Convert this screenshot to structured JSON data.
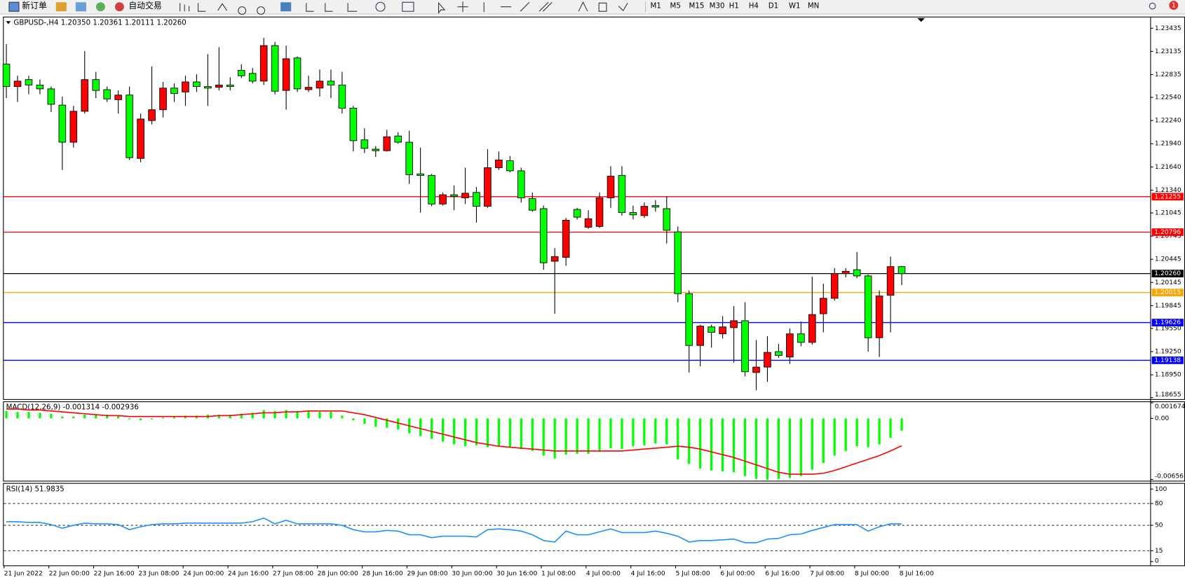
{
  "toolbar": {
    "new_order": "新订单",
    "auto_trading": "自动交易",
    "timeframes": [
      "M1",
      "M5",
      "M15",
      "M30",
      "H1",
      "H4",
      "D1",
      "W1",
      "MN"
    ],
    "notification_count": 1
  },
  "chart_data": [
    {
      "type": "candlestick",
      "title": "GBPUSD-,H4  1.20350 1.20361 1.20111 1.20260",
      "categories": [
        "21 Jun 2022",
        null,
        null,
        null,
        "22 Jun 00:00",
        null,
        null,
        null,
        "22 Jun 16:00",
        null,
        null,
        null,
        "23 Jun 08:00",
        null,
        null,
        null,
        "24 Jun 00:00",
        null,
        null,
        null,
        "24 Jun 16:00",
        null,
        null,
        null,
        "27 Jun 08:00",
        null,
        null,
        null,
        "28 Jun 00:00",
        null,
        null,
        null,
        "28 Jun 16:00",
        null,
        null,
        null,
        "29 Jun 08:00",
        null,
        null,
        null,
        "30 Jun 00:00",
        null,
        null,
        null,
        "30 Jun 16:00",
        null,
        null,
        null,
        "1 Jul 08:00",
        null,
        null,
        null,
        "4 Jul 00:00",
        null,
        null,
        null,
        "4 Jul 16:00",
        null,
        null,
        null,
        "5 Jul 08:00",
        null,
        null,
        null,
        "6 Jul 00:00",
        null,
        null,
        null,
        "6 Jul 16:00",
        null,
        null,
        null,
        "7 Jul 08:00",
        null,
        null,
        null,
        "8 Jul 00:00",
        null,
        null,
        null,
        "8 Jul 16:00"
      ],
      "open": [
        1.2297,
        1.2268,
        1.2277,
        1.227,
        1.2265,
        1.2244,
        1.2196,
        1.2236,
        1.2277,
        1.2264,
        1.2251,
        1.2257,
        1.2175,
        1.2224,
        1.2238,
        1.2266,
        1.2261,
        1.2274,
        1.2268,
        1.2267,
        1.227,
        1.2289,
        1.2285,
        1.2275,
        1.2321,
        1.2263,
        1.2305,
        1.2264,
        1.2266,
        1.2275,
        1.227,
        1.224,
        1.2199,
        1.2187,
        1.2185,
        1.2204,
        1.2196,
        1.2155,
        1.2153,
        1.2116,
        1.2128,
        1.2124,
        1.2131,
        1.2113,
        1.2163,
        1.2172,
        1.2159,
        1.2123,
        1.211,
        1.2042,
        1.2047,
        1.2109,
        1.2086,
        1.2087,
        1.2124,
        1.2153,
        1.2105,
        1.2101,
        1.2114,
        1.211,
        1.208,
        1.2,
        1.1933,
        1.1957,
        1.1948,
        1.1956,
        1.1965,
        1.1898,
        1.1905,
        1.1925,
        1.1918,
        1.1948,
        1.1937,
        1.1974,
        1.1994,
        1.2026,
        1.2031,
        1.2023,
        1.1943,
        1.1998,
        1.2035
      ],
      "high": [
        1.2323,
        1.2282,
        1.2282,
        1.2277,
        1.2268,
        1.2255,
        1.2243,
        1.2314,
        1.2287,
        1.2268,
        1.2263,
        1.2268,
        1.2233,
        1.2294,
        1.2274,
        1.2272,
        1.2282,
        1.2284,
        1.231,
        1.2319,
        1.228,
        1.2297,
        1.2292,
        1.2331,
        1.2326,
        1.2321,
        1.2307,
        1.2282,
        1.229,
        1.229,
        1.2287,
        1.2243,
        1.2214,
        1.2191,
        1.2212,
        1.2209,
        1.2211,
        1.2189,
        1.2155,
        1.2131,
        1.214,
        1.2163,
        1.2138,
        1.2187,
        1.2184,
        1.2178,
        1.2163,
        1.2131,
        1.2114,
        1.2059,
        1.2098,
        1.2111,
        1.2108,
        1.2131,
        1.2165,
        1.2165,
        1.2114,
        1.2118,
        1.2121,
        1.2126,
        1.2087,
        1.2004,
        1.196,
        1.196,
        1.1971,
        1.1984,
        1.1989,
        1.194,
        1.1945,
        1.1935,
        1.1955,
        1.1964,
        1.2022,
        1.2013,
        1.2033,
        1.2033,
        1.2054,
        1.2025,
        1.2004,
        1.2048,
        1.20361
      ],
      "low": [
        1.2253,
        1.2248,
        1.2258,
        1.2258,
        1.2235,
        1.216,
        1.2189,
        1.2233,
        1.2253,
        1.2248,
        1.2233,
        1.2173,
        1.217,
        1.2219,
        1.2228,
        1.2248,
        1.2243,
        1.2261,
        1.2243,
        1.2263,
        1.2263,
        1.2279,
        1.2272,
        1.227,
        1.2258,
        1.2238,
        1.2261,
        1.2261,
        1.2255,
        1.2253,
        1.2233,
        1.2184,
        1.2182,
        1.2177,
        1.2184,
        1.2194,
        1.2142,
        1.2105,
        1.2113,
        1.2114,
        1.2108,
        1.2116,
        1.2092,
        1.2111,
        1.216,
        1.2157,
        1.2118,
        1.2106,
        1.2031,
        1.1974,
        1.2036,
        1.2096,
        1.2084,
        1.2085,
        1.2111,
        1.2101,
        1.2096,
        1.2098,
        1.2106,
        1.2065,
        1.1989,
        1.1898,
        1.1906,
        1.193,
        1.1942,
        1.1911,
        1.1893,
        1.1875,
        1.1886,
        1.1917,
        1.1909,
        1.1932,
        1.1934,
        1.195,
        1.1991,
        1.2021,
        1.202,
        1.1925,
        1.1918,
        1.195,
        1.20111
      ],
      "close": [
        1.2268,
        1.2275,
        1.227,
        1.2265,
        1.2245,
        1.2196,
        1.2236,
        1.2277,
        1.2263,
        1.2252,
        1.2257,
        1.2176,
        1.2226,
        1.2238,
        1.2266,
        1.2259,
        1.2274,
        1.2268,
        1.2266,
        1.227,
        1.2268,
        1.2282,
        1.2275,
        1.2321,
        1.2262,
        1.2304,
        1.2265,
        1.2267,
        1.2275,
        1.227,
        1.224,
        1.2198,
        1.2188,
        1.2185,
        1.2203,
        1.2196,
        1.2154,
        1.2153,
        1.2116,
        1.2128,
        1.2126,
        1.213,
        1.2113,
        1.2163,
        1.2173,
        1.2159,
        1.2124,
        1.2108,
        1.204,
        1.2048,
        1.2095,
        1.2099,
        1.2097,
        1.2124,
        1.2152,
        1.2105,
        1.2102,
        1.2113,
        1.2112,
        1.2082,
        1.2,
        1.1933,
        1.1958,
        1.195,
        1.1957,
        1.1965,
        1.1899,
        1.1905,
        1.1924,
        1.192,
        1.1948,
        1.1937,
        1.1973,
        1.1994,
        1.2026,
        1.2029,
        1.2023,
        1.1943,
        1.1997,
        1.2035,
        1.2026
      ],
      "up_color": "#ff0000",
      "down_color": "#00ff00",
      "ylim": [
        1.18636,
        1.23575
      ],
      "yticks": [
        1.23435,
        1.23135,
        1.22835,
        {
          "value": 1.2254,
          "label": "1.22540"
        },
        {
          "value": 1.2224,
          "label": "1.22240"
        },
        {
          "value": 1.2194,
          "label": "1.21940"
        },
        {
          "value": 1.2164,
          "label": "1.21640"
        },
        {
          "value": 1.2134,
          "label": "1.21340"
        },
        1.21045,
        1.20745,
        1.20445,
        1.20145,
        1.19845,
        {
          "value": 1.1955,
          "label": "1.19550"
        },
        {
          "value": 1.1925,
          "label": "1.19250"
        },
        {
          "value": 1.1895,
          "label": "1.18950"
        },
        1.18655
      ],
      "hlines": [
        {
          "value": 1.21255,
          "label": "1.21255",
          "color": "#ff0000"
        },
        {
          "value": 1.20796,
          "label": "1.20796",
          "color": "#ff0000"
        },
        {
          "value": 1.2026,
          "label": "1.20260",
          "color": "#000000"
        },
        {
          "value": 1.20015,
          "label": "1.20015",
          "color": "#ffa500"
        },
        {
          "value": 1.19626,
          "label": "1.19626",
          "color": "#0000ff"
        },
        {
          "value": 1.19138,
          "label": "1.19138",
          "color": "#0000ff"
        }
      ]
    },
    {
      "type": "macd",
      "title": "MACD(12,26,9) -0.001314 -0.002936",
      "values": [
        0.0008,
        0.0007,
        0.0007,
        0.0006,
        0.0005,
        0.0002,
        0.0002,
        0.0004,
        0.0004,
        0.0004,
        0.0003,
        -0.0001,
        -0.0002,
        -0.0001,
        0.0001,
        0.0002,
        0.0003,
        0.0003,
        0.0004,
        0.0004,
        0.0004,
        0.0005,
        0.0006,
        0.0009,
        0.0008,
        0.0009,
        0.0008,
        0.0008,
        0.0007,
        0.0007,
        0.0003,
        -0.0002,
        -0.0006,
        -0.0009,
        -0.001,
        -0.0012,
        -0.0016,
        -0.0019,
        -0.0022,
        -0.0025,
        -0.0028,
        -0.003,
        -0.0029,
        -0.0031,
        -0.003,
        -0.0031,
        -0.0033,
        -0.0035,
        -0.004,
        -0.0043,
        -0.0039,
        -0.0038,
        -0.0038,
        -0.0036,
        -0.0032,
        -0.0033,
        -0.003,
        -0.0029,
        -0.0027,
        -0.0028,
        -0.0044,
        -0.0049,
        -0.0054,
        -0.0056,
        -0.0057,
        -0.0058,
        -0.0062,
        -0.0065,
        -0.0066,
        -0.0065,
        -0.0064,
        -0.0062,
        -0.0055,
        -0.0048,
        -0.004,
        -0.0035,
        -0.003,
        -0.0031,
        -0.0028,
        -0.0021,
        -0.001314
      ],
      "signal": [
        0.001,
        0.001,
        0.0009,
        0.0009,
        0.0008,
        0.0007,
        0.0006,
        0.0005,
        0.0004,
        0.0003,
        0.0003,
        0.0002,
        0.0002,
        0.0002,
        0.0002,
        0.0002,
        0.0002,
        0.0002,
        0.0002,
        0.0003,
        0.0003,
        0.0004,
        0.0005,
        0.0006,
        0.0006,
        0.0007,
        0.0007,
        0.0008,
        0.0008,
        0.0008,
        0.0008,
        0.0006,
        0.0004,
        0.0001,
        -0.0002,
        -0.0005,
        -0.0008,
        -0.0011,
        -0.0014,
        -0.0017,
        -0.002,
        -0.0023,
        -0.0026,
        -0.0028,
        -0.003,
        -0.0031,
        -0.0032,
        -0.0033,
        -0.0034,
        -0.0035,
        -0.0035,
        -0.0035,
        -0.0035,
        -0.0035,
        -0.0035,
        -0.0035,
        -0.0034,
        -0.0033,
        -0.0032,
        -0.0031,
        -0.003,
        -0.0031,
        -0.0033,
        -0.0036,
        -0.0039,
        -0.0042,
        -0.0046,
        -0.005,
        -0.0054,
        -0.0058,
        -0.006,
        -0.006,
        -0.006,
        -0.0059,
        -0.0056,
        -0.0052,
        -0.0048,
        -0.0044,
        -0.004,
        -0.0035,
        -0.002936
      ],
      "color": "#00ff00",
      "signal_color": "#ff0000",
      "ylim": [
        -0.0067,
        0.00175
      ],
      "yticks": [
        0.001674,
        {
          "value": 0,
          "label": "0.00"
        },
        -0.00656
      ]
    },
    {
      "type": "line",
      "title": "RSI(14) 51.9835",
      "values": [
        55,
        55,
        54,
        54,
        51,
        46,
        50,
        53,
        52,
        52,
        51,
        44,
        48,
        51,
        52,
        52,
        53,
        53,
        53,
        53,
        53,
        53,
        55,
        60,
        52,
        57,
        52,
        52,
        52,
        52,
        50,
        44,
        41,
        41,
        43,
        42,
        37,
        37,
        33,
        35,
        35,
        35,
        34,
        44,
        45,
        44,
        42,
        37,
        29,
        27,
        42,
        37,
        37,
        41,
        45,
        40,
        40,
        40,
        42,
        39,
        35,
        27,
        29,
        29,
        30,
        31,
        26,
        26,
        31,
        32,
        37,
        38,
        43,
        47,
        51,
        51,
        51,
        42,
        48,
        52,
        51.9835
      ],
      "color": "#1e90ff",
      "ylim": [
        -5.2,
        107.3
      ],
      "yticks": [
        100,
        80,
        50,
        15,
        0
      ],
      "levels": [
        80,
        50,
        15
      ]
    }
  ]
}
